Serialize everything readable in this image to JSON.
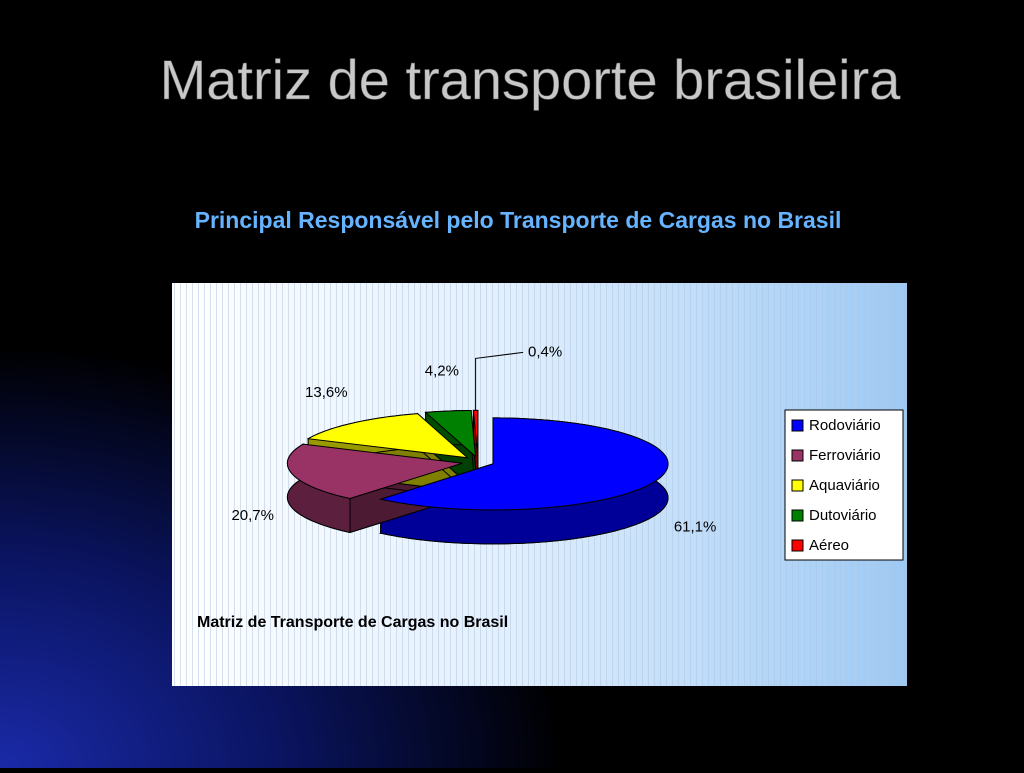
{
  "slide": {
    "title": "Matriz de transporte brasileira",
    "subtitle": "Principal Responsável pelo Transporte de Cargas no Brasil"
  },
  "chart_data": {
    "type": "pie",
    "title": "Matriz de Transporte de Cargas no Brasil",
    "categories": [
      "Rodoviário",
      "Ferroviário",
      "Aquaviário",
      "Dutoviário",
      "Aéreo"
    ],
    "values": [
      61.1,
      20.7,
      13.6,
      4.2,
      0.4
    ],
    "value_labels": [
      "61,1%",
      "20,7%",
      "13,6%",
      "4,2%",
      "0,4%"
    ],
    "colors": [
      "#0000ff",
      "#993366",
      "#ffff00",
      "#008000",
      "#ff0000"
    ],
    "legend": "right"
  }
}
